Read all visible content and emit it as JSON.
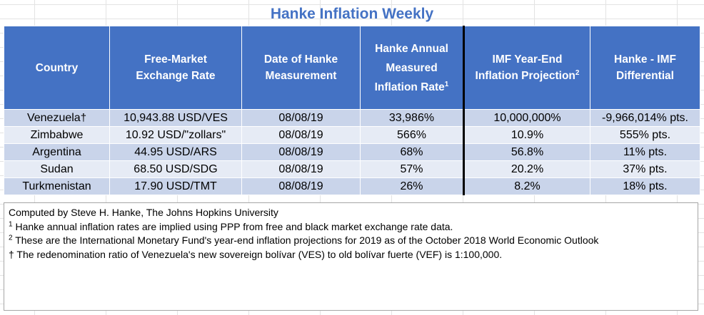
{
  "title": "Hanke Inflation Weekly",
  "headers": {
    "country": "Country",
    "fx_line1": "Free-Market",
    "fx_line2": "Exchange Rate",
    "date_line1": "Date of Hanke",
    "date_line2": "Measurement",
    "hanke_line1": "Hanke Annual",
    "hanke_line2": "Measured",
    "hanke_line3": "Inflation Rate",
    "hanke_sup": "1",
    "imf_line1": "IMF Year-End",
    "imf_line2": "Inflation Projection",
    "imf_sup": "2",
    "diff_line1": "Hanke - IMF",
    "diff_line2": "Differential"
  },
  "rows": [
    {
      "country": "Venezuela",
      "dagger": "†",
      "fx": "10,943.88 USD/VES",
      "date": "08/08/19",
      "hanke": "33,986%",
      "imf": "10,000,000%",
      "diff": "-9,966,014% pts."
    },
    {
      "country": "Zimbabwe",
      "dagger": "",
      "fx": "10.92 USD/\"zollars\"",
      "date": "08/08/19",
      "hanke": "566%",
      "imf": "10.9%",
      "diff": "555% pts."
    },
    {
      "country": "Argentina",
      "dagger": "",
      "fx": "44.95 USD/ARS",
      "date": "08/08/19",
      "hanke": "68%",
      "imf": "56.8%",
      "diff": "11% pts."
    },
    {
      "country": "Sudan",
      "dagger": "",
      "fx": "68.50 USD/SDG",
      "date": "08/08/19",
      "hanke": "57%",
      "imf": "20.2%",
      "diff": "37% pts."
    },
    {
      "country": "Turkmenistan",
      "dagger": "",
      "fx": "17.90 USD/TMT",
      "date": "08/08/19",
      "hanke": "26%",
      "imf": "8.2%",
      "diff": "18% pts."
    }
  ],
  "notes": {
    "credit": "Computed by Steve H. Hanke, The Johns Hopkins University",
    "note1_mark": "1",
    "note1": " Hanke annual inflation rates are implied using PPP from free and black market exchange rate data.",
    "note2_mark": "2",
    "note2": " These are the International Monetary Fund's year-end inflation projections for 2019 as of the October 2018 World Economic Outlook",
    "note3_mark": "†",
    "note3": " The redenomination ratio of Venezuela's new sovereign bolívar (VES) to old bolívar fuerte (VEF) is 1:100,000."
  },
  "colors": {
    "header_bg": "#4472c4",
    "row_odd": "#c9d4ea",
    "row_even": "#e6ebf5",
    "title": "#4472c4"
  }
}
